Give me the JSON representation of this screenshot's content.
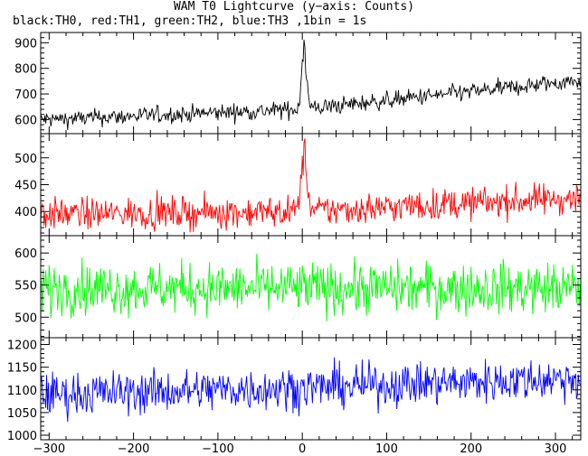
{
  "title": "WAM T0 Lightcurve (y−axis: Counts)",
  "subtitle": "black:TH0, red:TH1, green:TH2, blue:TH3 ,1bin = 1s",
  "chart_data": {
    "type": "line",
    "x_range": [
      -310,
      330
    ],
    "x_ticks": [
      -300,
      -200,
      -100,
      0,
      100,
      200,
      300
    ],
    "x_tick_labels": [
      "−300",
      "−200",
      "−100",
      "0",
      "100",
      "200",
      "300"
    ],
    "grid": false,
    "series": [
      {
        "color": "#000000",
        "ylim": [
          545,
          940
        ],
        "yticks": [
          600,
          700,
          800,
          900
        ],
        "baseline": {
          "x": [
            -300,
            0,
            320
          ],
          "y": [
            600,
            640,
            750
          ]
        },
        "noise_amp": 32,
        "peak": {
          "x": 2,
          "height": 260,
          "width": 4
        }
      },
      {
        "color": "#ff0000",
        "ylim": [
          355,
          545
        ],
        "yticks": [
          400,
          450,
          500
        ],
        "baseline": {
          "x": [
            -300,
            0,
            320
          ],
          "y": [
            395,
            400,
            425
          ]
        },
        "noise_amp": 28,
        "peak": {
          "x": 2,
          "height": 110,
          "width": 5
        }
      },
      {
        "color": "#00ff00",
        "ylim": [
          468,
          627
        ],
        "yticks": [
          500,
          550,
          600
        ],
        "baseline": {
          "x": [
            -300,
            0,
            320
          ],
          "y": [
            545,
            545,
            545
          ]
        },
        "noise_amp": 38,
        "peak": null
      },
      {
        "color": "#0000ff",
        "ylim": [
          990,
          1215
        ],
        "yticks": [
          1000,
          1050,
          1100,
          1150,
          1200
        ],
        "baseline": {
          "x": [
            -300,
            0,
            320
          ],
          "y": [
            1090,
            1105,
            1125
          ]
        },
        "noise_amp": 45,
        "peak": null
      }
    ]
  }
}
